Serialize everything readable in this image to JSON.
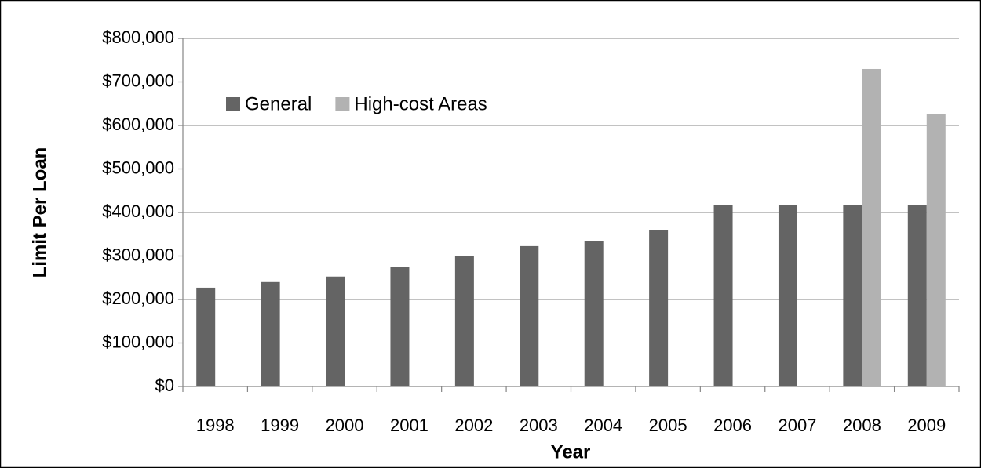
{
  "chart_data": {
    "type": "bar",
    "x_label": "Year",
    "y_label": "Limit Per Loan",
    "categories": [
      "1998",
      "1999",
      "2000",
      "2001",
      "2002",
      "2003",
      "2004",
      "2005",
      "2006",
      "2007",
      "2008",
      "2009"
    ],
    "series": [
      {
        "name": "General",
        "color": "#646464",
        "values": [
          227150,
          240000,
          252700,
          275000,
          300700,
          322700,
          333700,
          359650,
          417000,
          417000,
          417000,
          417000
        ]
      },
      {
        "name": "High-cost Areas",
        "color": "#b2b2b2",
        "values": [
          null,
          null,
          null,
          null,
          null,
          null,
          null,
          null,
          null,
          null,
          729750,
          625500
        ]
      }
    ],
    "ylim": [
      0,
      800000
    ],
    "yticks": [
      {
        "value": 0,
        "label": "$0"
      },
      {
        "value": 100000,
        "label": "$100,000"
      },
      {
        "value": 200000,
        "label": "$200,000"
      },
      {
        "value": 300000,
        "label": "$300,000"
      },
      {
        "value": 400000,
        "label": "$400,000"
      },
      {
        "value": 500000,
        "label": "$500,000"
      },
      {
        "value": 600000,
        "label": "$600,000"
      },
      {
        "value": 700000,
        "label": "$700,000"
      },
      {
        "value": 800000,
        "label": "$800,000"
      }
    ],
    "grid": true
  }
}
